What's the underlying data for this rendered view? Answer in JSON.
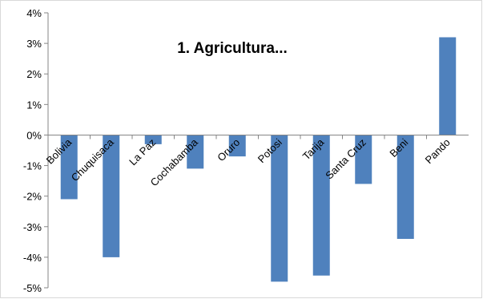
{
  "chart_data": {
    "type": "bar",
    "title": "1. Agricultura...",
    "xlabel": "",
    "ylabel": "",
    "categories": [
      "Bolivia",
      "Chuquisaca",
      "La Paz",
      "Cochabamba",
      "Oruro",
      "Potosi",
      "Tarija",
      "Santa Cruz",
      "Beni",
      "Pando"
    ],
    "values": [
      -2.1,
      -4.0,
      -0.3,
      -1.1,
      -0.7,
      -4.8,
      -4.6,
      -1.6,
      -3.4,
      3.2
    ],
    "ylim": [
      -5,
      4
    ],
    "yticks": [
      4,
      3,
      2,
      1,
      0,
      -1,
      -2,
      -3,
      -4,
      -5
    ],
    "ytick_labels": [
      "4%",
      "3%",
      "2%",
      "1%",
      "0%",
      "-1%",
      "-2%",
      "-3%",
      "-4%",
      "-5%"
    ],
    "grid": false,
    "legend": "none",
    "bar_color": "#4F81BD",
    "axis_color": "#868686"
  }
}
